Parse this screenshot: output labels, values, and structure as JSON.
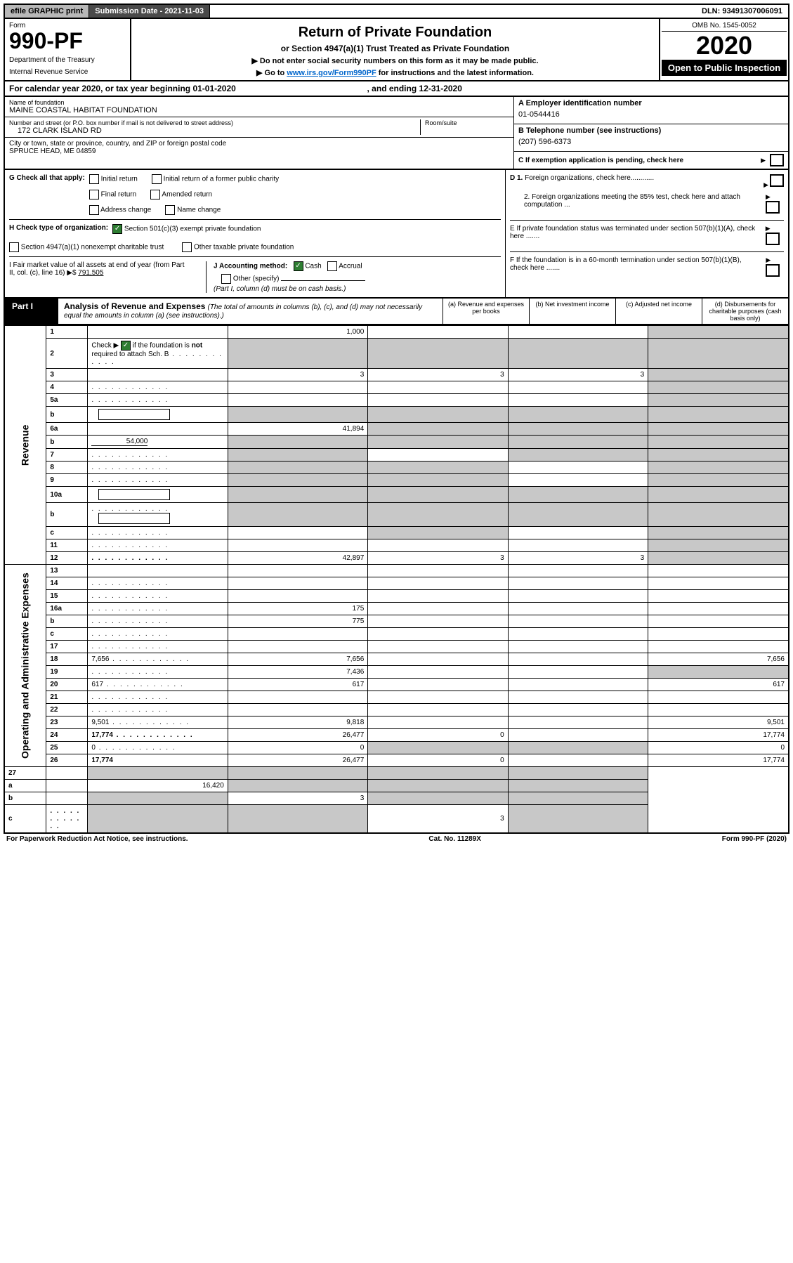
{
  "topbar": {
    "efile": "efile GRAPHIC print",
    "submission": "Submission Date - 2021-11-03",
    "dln": "DLN: 93491307006091"
  },
  "header": {
    "form_label": "Form",
    "form_number": "990-PF",
    "dept": "Department of the Treasury",
    "irs": "Internal Revenue Service",
    "title": "Return of Private Foundation",
    "subtitle1": "or Section 4947(a)(1) Trust Treated as Private Foundation",
    "subtitle2": "▶ Do not enter social security numbers on this form as it may be made public.",
    "subtitle3_pre": "▶ Go to ",
    "subtitle3_link": "www.irs.gov/Form990PF",
    "subtitle3_post": " for instructions and the latest information.",
    "omb": "OMB No. 1545-0052",
    "year": "2020",
    "open": "Open to Public Inspection"
  },
  "calyear": {
    "text_pre": "For calendar year 2020, or tax year beginning 01-01-2020",
    "text_post": ", and ending 12-31-2020"
  },
  "info": {
    "name_label": "Name of foundation",
    "name": "MAINE COASTAL HABITAT FOUNDATION",
    "addr_label": "Number and street (or P.O. box number if mail is not delivered to street address)",
    "addr": "172 CLARK ISLAND RD",
    "room_label": "Room/suite",
    "city_label": "City or town, state or province, country, and ZIP or foreign postal code",
    "city": "SPRUCE HEAD, ME  04859",
    "ein_label": "A Employer identification number",
    "ein": "01-0544416",
    "tel_label": "B Telephone number (see instructions)",
    "tel": "(207) 596-6373",
    "c_label": "C If exemption application is pending, check here"
  },
  "g": {
    "label": "G Check all that apply:",
    "opt1": "Initial return",
    "opt2": "Final return",
    "opt3": "Address change",
    "opt4": "Initial return of a former public charity",
    "opt5": "Amended return",
    "opt6": "Name change"
  },
  "h": {
    "label": "H Check type of organization:",
    "opt1": "Section 501(c)(3) exempt private foundation",
    "opt2": "Section 4947(a)(1) nonexempt charitable trust",
    "opt3": "Other taxable private foundation"
  },
  "i": {
    "label": "I Fair market value of all assets at end of year (from Part II, col. (c), line 16)",
    "val_pre": "▶$ ",
    "val": "791,505"
  },
  "j": {
    "label": "J Accounting method:",
    "cash": "Cash",
    "accrual": "Accrual",
    "other": "Other (specify)",
    "note": "(Part I, column (d) must be on cash basis.)"
  },
  "d": {
    "d1": "D 1. Foreign organizations, check here............",
    "d2": "2. Foreign organizations meeting the 85% test, check here and attach computation ..."
  },
  "e": {
    "label": "E  If private foundation status was terminated under section 507(b)(1)(A), check here ......."
  },
  "f": {
    "label": "F  If the foundation is in a 60-month termination under section 507(b)(1)(B), check here ......."
  },
  "part1": {
    "label": "Part I",
    "title": "Analysis of Revenue and Expenses",
    "sub": " (The total of amounts in columns (b), (c), and (d) may not necessarily equal the amounts in column (a) (see instructions).)",
    "col_a": "(a)   Revenue and expenses per books",
    "col_b": "(b)   Net investment income",
    "col_c": "(c)   Adjusted net income",
    "col_d": "(d)  Disbursements for charitable purposes (cash basis only)"
  },
  "side_rev": "Revenue",
  "side_exp": "Operating and Administrative Expenses",
  "rows_rev": [
    {
      "n": "1",
      "d": "",
      "a": "1,000",
      "b": "",
      "c": "",
      "greyD": true
    },
    {
      "n": "2",
      "d": "",
      "a": "",
      "b": "",
      "c": "",
      "greyA": true,
      "greyB": true,
      "greyC": true,
      "greyD": true,
      "bold_not": true,
      "dots": true
    },
    {
      "n": "3",
      "d": "",
      "a": "3",
      "b": "3",
      "c": "3",
      "greyD": true
    },
    {
      "n": "4",
      "d": "",
      "a": "",
      "b": "",
      "c": "",
      "greyD": true,
      "dots": true
    },
    {
      "n": "5a",
      "d": "",
      "a": "",
      "b": "",
      "c": "",
      "greyD": true,
      "dots": true
    },
    {
      "n": "b",
      "d": "",
      "a": "",
      "b": "",
      "c": "",
      "greyA": true,
      "greyB": true,
      "greyC": true,
      "greyD": true,
      "inlineBox": true
    },
    {
      "n": "6a",
      "d": "",
      "a": "41,894",
      "b": "",
      "c": "",
      "greyB": true,
      "greyC": true,
      "greyD": true
    },
    {
      "n": "b",
      "d": "",
      "inlineVal": "54,000",
      "a": "",
      "b": "",
      "c": "",
      "greyA": true,
      "greyB": true,
      "greyC": true,
      "greyD": true
    },
    {
      "n": "7",
      "d": "",
      "a": "",
      "b": "",
      "c": "",
      "greyA": true,
      "greyC": true,
      "greyD": true,
      "dots": true
    },
    {
      "n": "8",
      "d": "",
      "a": "",
      "b": "",
      "c": "",
      "greyA": true,
      "greyB": true,
      "greyD": true,
      "dots": true
    },
    {
      "n": "9",
      "d": "",
      "a": "",
      "b": "",
      "c": "",
      "greyA": true,
      "greyB": true,
      "greyD": true,
      "dots": true
    },
    {
      "n": "10a",
      "d": "",
      "a": "",
      "b": "",
      "c": "",
      "greyA": true,
      "greyB": true,
      "greyC": true,
      "greyD": true,
      "inlineBox": true
    },
    {
      "n": "b",
      "d": "",
      "a": "",
      "b": "",
      "c": "",
      "greyA": true,
      "greyB": true,
      "greyC": true,
      "greyD": true,
      "inlineBox": true,
      "dots": true
    },
    {
      "n": "c",
      "d": "",
      "a": "",
      "b": "",
      "c": "",
      "greyB": true,
      "greyD": true,
      "dots": true
    },
    {
      "n": "11",
      "d": "",
      "a": "",
      "b": "",
      "c": "",
      "greyD": true,
      "dots": true
    },
    {
      "n": "12",
      "d": "",
      "a": "42,897",
      "b": "3",
      "c": "3",
      "greyD": true,
      "bold": true,
      "dots": true
    }
  ],
  "rows_exp": [
    {
      "n": "13",
      "d": "",
      "a": "",
      "b": "",
      "c": ""
    },
    {
      "n": "14",
      "d": "",
      "a": "",
      "b": "",
      "c": "",
      "dots": true
    },
    {
      "n": "15",
      "d": "",
      "a": "",
      "b": "",
      "c": "",
      "dots": true
    },
    {
      "n": "16a",
      "d": "",
      "a": "175",
      "b": "",
      "c": "",
      "dots": true
    },
    {
      "n": "b",
      "d": "",
      "a": "775",
      "b": "",
      "c": "",
      "dots": true
    },
    {
      "n": "c",
      "d": "",
      "a": "",
      "b": "",
      "c": "",
      "dots": true
    },
    {
      "n": "17",
      "d": "",
      "a": "",
      "b": "",
      "c": "",
      "dots": true
    },
    {
      "n": "18",
      "d": "7,656",
      "a": "7,656",
      "b": "",
      "c": "",
      "dots": true
    },
    {
      "n": "19",
      "d": "",
      "a": "7,436",
      "b": "",
      "c": "",
      "greyD": true,
      "dots": true
    },
    {
      "n": "20",
      "d": "617",
      "a": "617",
      "b": "",
      "c": "",
      "dots": true
    },
    {
      "n": "21",
      "d": "",
      "a": "",
      "b": "",
      "c": "",
      "dots": true
    },
    {
      "n": "22",
      "d": "",
      "a": "",
      "b": "",
      "c": "",
      "dots": true
    },
    {
      "n": "23",
      "d": "9,501",
      "a": "9,818",
      "b": "",
      "c": "",
      "dots": true
    },
    {
      "n": "24",
      "d": "17,774",
      "a": "26,477",
      "b": "0",
      "c": "",
      "bold": true,
      "dots": true
    },
    {
      "n": "25",
      "d": "0",
      "a": "0",
      "b": "",
      "c": "",
      "greyB": true,
      "greyC": true,
      "dots": true
    },
    {
      "n": "26",
      "d": "17,774",
      "a": "26,477",
      "b": "0",
      "c": "",
      "bold": true
    }
  ],
  "rows_27": [
    {
      "n": "27",
      "d": "",
      "a": "",
      "b": "",
      "c": "",
      "greyA": true,
      "greyB": true,
      "greyC": true,
      "greyD": true
    },
    {
      "n": "a",
      "d": "",
      "a": "16,420",
      "b": "",
      "c": "",
      "greyB": true,
      "greyC": true,
      "greyD": true,
      "bold": true
    },
    {
      "n": "b",
      "d": "",
      "a": "",
      "b": "3",
      "c": "",
      "greyA": true,
      "greyC": true,
      "greyD": true,
      "bold": true
    },
    {
      "n": "c",
      "d": "",
      "a": "",
      "b": "",
      "c": "3",
      "greyA": true,
      "greyB": true,
      "greyD": true,
      "bold": true,
      "dots": true
    }
  ],
  "footer": {
    "left": "For Paperwork Reduction Act Notice, see instructions.",
    "mid": "Cat. No. 11289X",
    "right": "Form 990-PF (2020)"
  },
  "styling": {
    "bg": "#ffffff",
    "border": "#000000",
    "grey_cell": "#c8c8c8",
    "dark_bar": "#4a4a4a",
    "light_bar": "#b8b8b8",
    "link": "#0066cc",
    "check_green": "#2e7d32",
    "font_base_pt": 10,
    "font_title_pt": 20,
    "font_year_pt": 36,
    "font_formnum_pt": 32
  }
}
